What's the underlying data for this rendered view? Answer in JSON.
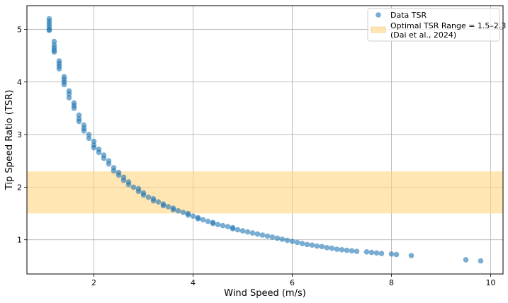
{
  "chart_data": {
    "type": "scatter",
    "xlabel": "Wind Speed (m/s)",
    "ylabel": "Tip Speed Ratio (TSR)",
    "xlim": [
      0.65,
      10.25
    ],
    "ylim": [
      0.35,
      5.45
    ],
    "xticks": [
      2,
      4,
      6,
      8,
      10
    ],
    "yticks": [
      1,
      2,
      3,
      4,
      5
    ],
    "grid": true,
    "legend_position": "top-right",
    "colors": {
      "points": "#1f77b4",
      "band": "#ffd580"
    },
    "band": {
      "name": "Optimal TSR Range = 1.5–2.3",
      "name_line2": "(Dai et al., 2024)",
      "y0": 1.5,
      "y1": 2.3
    },
    "series": [
      {
        "name": "Data TSR",
        "x": [
          1.1,
          1.1,
          1.1,
          1.1,
          1.1,
          1.1,
          1.2,
          1.2,
          1.2,
          1.2,
          1.2,
          1.3,
          1.3,
          1.3,
          1.3,
          1.4,
          1.4,
          1.4,
          1.4,
          1.5,
          1.5,
          1.5,
          1.6,
          1.6,
          1.6,
          1.7,
          1.7,
          1.7,
          1.8,
          1.8,
          1.8,
          1.9,
          1.9,
          2.0,
          2.0,
          2.0,
          2.1,
          2.1,
          2.2,
          2.2,
          2.3,
          2.3,
          2.4,
          2.4,
          2.5,
          2.5,
          2.6,
          2.6,
          2.7,
          2.7,
          2.8,
          2.9,
          2.9,
          3.0,
          3.0,
          3.1,
          3.2,
          3.2,
          3.3,
          3.4,
          3.4,
          3.5,
          3.6,
          3.6,
          3.7,
          3.8,
          3.9,
          3.9,
          4.0,
          4.1,
          4.1,
          4.2,
          4.3,
          4.4,
          4.4,
          4.5,
          4.6,
          4.7,
          4.8,
          4.8,
          4.9,
          5.0,
          5.1,
          5.2,
          5.3,
          5.4,
          5.5,
          5.6,
          5.7,
          5.8,
          5.9,
          6.0,
          6.1,
          6.2,
          6.3,
          6.4,
          6.5,
          6.6,
          6.7,
          6.8,
          6.9,
          7.0,
          7.1,
          7.2,
          7.3,
          7.5,
          7.6,
          7.7,
          7.8,
          8.0,
          8.1,
          8.4,
          9.5,
          9.8
        ],
        "y": [
          5.2,
          5.15,
          5.1,
          5.05,
          5.0,
          4.98,
          4.77,
          4.7,
          4.65,
          4.6,
          4.57,
          4.4,
          4.35,
          4.3,
          4.25,
          4.1,
          4.05,
          4.0,
          3.95,
          3.83,
          3.77,
          3.7,
          3.6,
          3.55,
          3.5,
          3.37,
          3.3,
          3.25,
          3.18,
          3.12,
          3.07,
          3.0,
          2.93,
          2.87,
          2.8,
          2.75,
          2.72,
          2.66,
          2.61,
          2.55,
          2.5,
          2.44,
          2.37,
          2.31,
          2.28,
          2.23,
          2.19,
          2.13,
          2.1,
          2.05,
          2.0,
          1.97,
          1.92,
          1.89,
          1.85,
          1.81,
          1.78,
          1.74,
          1.72,
          1.68,
          1.65,
          1.63,
          1.6,
          1.57,
          1.55,
          1.52,
          1.5,
          1.47,
          1.45,
          1.42,
          1.4,
          1.38,
          1.35,
          1.33,
          1.31,
          1.29,
          1.27,
          1.25,
          1.23,
          1.21,
          1.19,
          1.17,
          1.15,
          1.13,
          1.11,
          1.09,
          1.07,
          1.05,
          1.03,
          1.01,
          0.99,
          0.97,
          0.95,
          0.93,
          0.91,
          0.9,
          0.88,
          0.87,
          0.85,
          0.84,
          0.82,
          0.81,
          0.8,
          0.79,
          0.78,
          0.77,
          0.76,
          0.75,
          0.74,
          0.73,
          0.72,
          0.7,
          0.62,
          0.6
        ]
      }
    ]
  }
}
